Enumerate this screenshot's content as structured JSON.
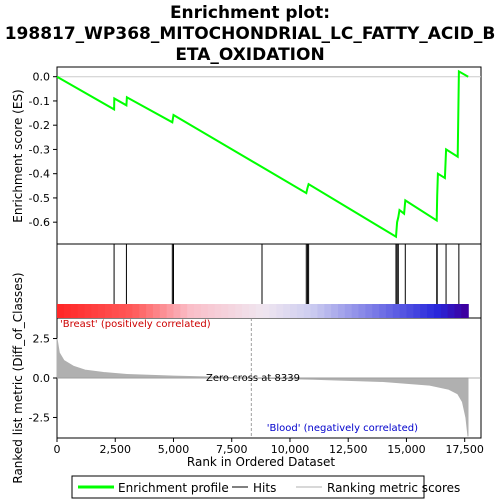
{
  "title_line1": "Enrichment plot:",
  "title_line2": "198817_WP368_MITOCHONDRIAL_LC_FATTY_ACID_B",
  "title_line3": "ETA_OXIDATION",
  "chart_data": {
    "type": "line",
    "es_panel": {
      "ylabel": "Enrichment score (ES)",
      "ylim": [
        -0.69,
        0.04
      ],
      "yticks": [
        "0.0",
        "-0.1",
        "-0.2",
        "-0.3",
        "-0.4",
        "-0.5",
        "-0.6"
      ],
      "ytick_values": [
        0.0,
        -0.1,
        -0.2,
        -0.3,
        -0.4,
        -0.5,
        -0.6
      ],
      "series": [
        {
          "name": "Enrichment profile",
          "color": "#00ff00",
          "points": [
            [
              0,
              0.0
            ],
            [
              2450,
              -0.135
            ],
            [
              2460,
              -0.09
            ],
            [
              2980,
              -0.118
            ],
            [
              3000,
              -0.085
            ],
            [
              4950,
              -0.188
            ],
            [
              5000,
              -0.158
            ],
            [
              10700,
              -0.48
            ],
            [
              10750,
              -0.46
            ],
            [
              10800,
              -0.443
            ],
            [
              14550,
              -0.66
            ],
            [
              14600,
              -0.6
            ],
            [
              14650,
              -0.58
            ],
            [
              14700,
              -0.55
            ],
            [
              14900,
              -0.565
            ],
            [
              14950,
              -0.51
            ],
            [
              16300,
              -0.593
            ],
            [
              16320,
              -0.49
            ],
            [
              16350,
              -0.4
            ],
            [
              16650,
              -0.418
            ],
            [
              16700,
              -0.3
            ],
            [
              17200,
              -0.33
            ],
            [
              17250,
              0.022
            ],
            [
              17650,
              0.0
            ]
          ]
        }
      ]
    },
    "hits": [
      2450,
      2980,
      4950,
      5000,
      8800,
      10700,
      10750,
      10800,
      14550,
      14600,
      14650,
      14950,
      16300,
      16320,
      16700,
      17250
    ],
    "metric_panel": {
      "ylabel": "Ranked list metric (Diff_of_Classes)",
      "ylim": [
        -3.8,
        3.8
      ],
      "yticks": [
        "2.5",
        "0.0",
        "-2.5"
      ],
      "ytick_values": [
        2.5,
        0.0,
        -2.5
      ],
      "series": [
        {
          "name": "Ranking metric scores",
          "color": "#b0b0b0",
          "points": [
            [
              0,
              2.5
            ],
            [
              100,
              1.6
            ],
            [
              300,
              1.1
            ],
            [
              700,
              0.75
            ],
            [
              1200,
              0.5
            ],
            [
              2000,
              0.35
            ],
            [
              3000,
              0.22
            ],
            [
              5000,
              0.12
            ],
            [
              8339,
              0.0
            ],
            [
              11000,
              -0.08
            ],
            [
              14000,
              -0.22
            ],
            [
              16000,
              -0.45
            ],
            [
              16800,
              -0.7
            ],
            [
              17200,
              -1.0
            ],
            [
              17400,
              -1.5
            ],
            [
              17550,
              -2.5
            ],
            [
              17640,
              -3.7
            ]
          ]
        }
      ],
      "zero_cross_label": "Zero cross at 8339",
      "zero_cross_x": 8339,
      "positive_label": "'Breast' (positively correlated)",
      "negative_label": "'Blood' (negatively correlated)"
    },
    "xlabel": "Rank in Ordered Dataset",
    "xlim": [
      0,
      18200
    ],
    "xticks": [
      "0",
      "2,500",
      "5,000",
      "7,500",
      "10,000",
      "12,500",
      "15,000",
      "17,500"
    ],
    "xtick_values": [
      0,
      2500,
      5000,
      7500,
      10000,
      12500,
      15000,
      17500
    ],
    "colorbar_max": 17650
  },
  "legend": {
    "items": [
      {
        "label": "Enrichment profile",
        "color": "#00ff00"
      },
      {
        "label": "Hits",
        "color": "#000000"
      },
      {
        "label": "Ranking metric scores",
        "color": "#b0b0b0"
      }
    ]
  }
}
